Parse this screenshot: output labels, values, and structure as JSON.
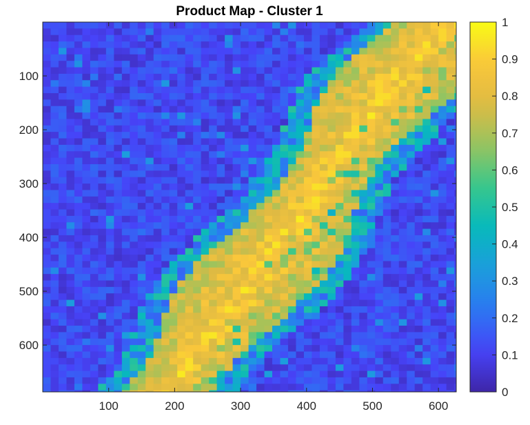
{
  "chart_data": {
    "type": "heatmap",
    "title": "Product Map - Cluster 1",
    "xlabel": "",
    "ylabel": "",
    "xlim": [
      0,
      627
    ],
    "ylim": [
      0,
      687
    ],
    "y_reversed": true,
    "x_ticks": [
      100,
      200,
      300,
      400,
      500,
      600
    ],
    "y_ticks": [
      100,
      200,
      300,
      400,
      500,
      600
    ],
    "colorbar": {
      "range": [
        0,
        1
      ],
      "ticks": [
        "0",
        "0.1",
        "0.2",
        "0.3",
        "0.4",
        "0.5",
        "0.6",
        "0.7",
        "0.8",
        "0.9",
        "1"
      ],
      "colormap": "parula"
    },
    "colormap_stops": [
      "#3e26a8",
      "#4743f8",
      "#2b78f2",
      "#1c9ddd",
      "#07b9bc",
      "#38c78c",
      "#97c45f",
      "#deba43",
      "#fac73b",
      "#f9fb15"
    ],
    "band": {
      "description_points": [
        {
          "x": 620,
          "y": 0,
          "value": 0.65
        },
        {
          "x": 560,
          "y": 80,
          "value": 0.72
        },
        {
          "x": 470,
          "y": 220,
          "value": 0.8
        },
        {
          "x": 380,
          "y": 380,
          "value": 0.82
        },
        {
          "x": 280,
          "y": 540,
          "value": 0.8
        },
        {
          "x": 190,
          "y": 687,
          "value": 0.82
        }
      ],
      "background_value": 0.12
    }
  }
}
